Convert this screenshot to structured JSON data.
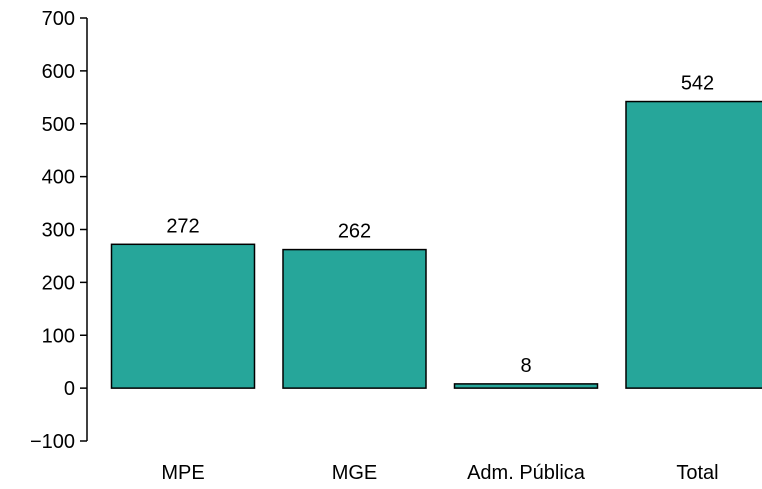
{
  "chart_data": {
    "type": "bar",
    "categories": [
      "MPE",
      "MGE",
      "Adm. Pública",
      "Total"
    ],
    "values": [
      272,
      262,
      8,
      542
    ],
    "data_labels": [
      "272",
      "262",
      "8",
      "542"
    ],
    "title": "",
    "xlabel": "",
    "ylabel": "",
    "ylim": [
      -100,
      700
    ],
    "yticks": [
      -100,
      0,
      100,
      200,
      300,
      400,
      500,
      600,
      700
    ],
    "ytick_labels": [
      "−100",
      "0",
      "100",
      "200",
      "300",
      "400",
      "500",
      "600",
      "700"
    ],
    "grid": false,
    "legend": "none",
    "bar_color": "#26a69a"
  }
}
